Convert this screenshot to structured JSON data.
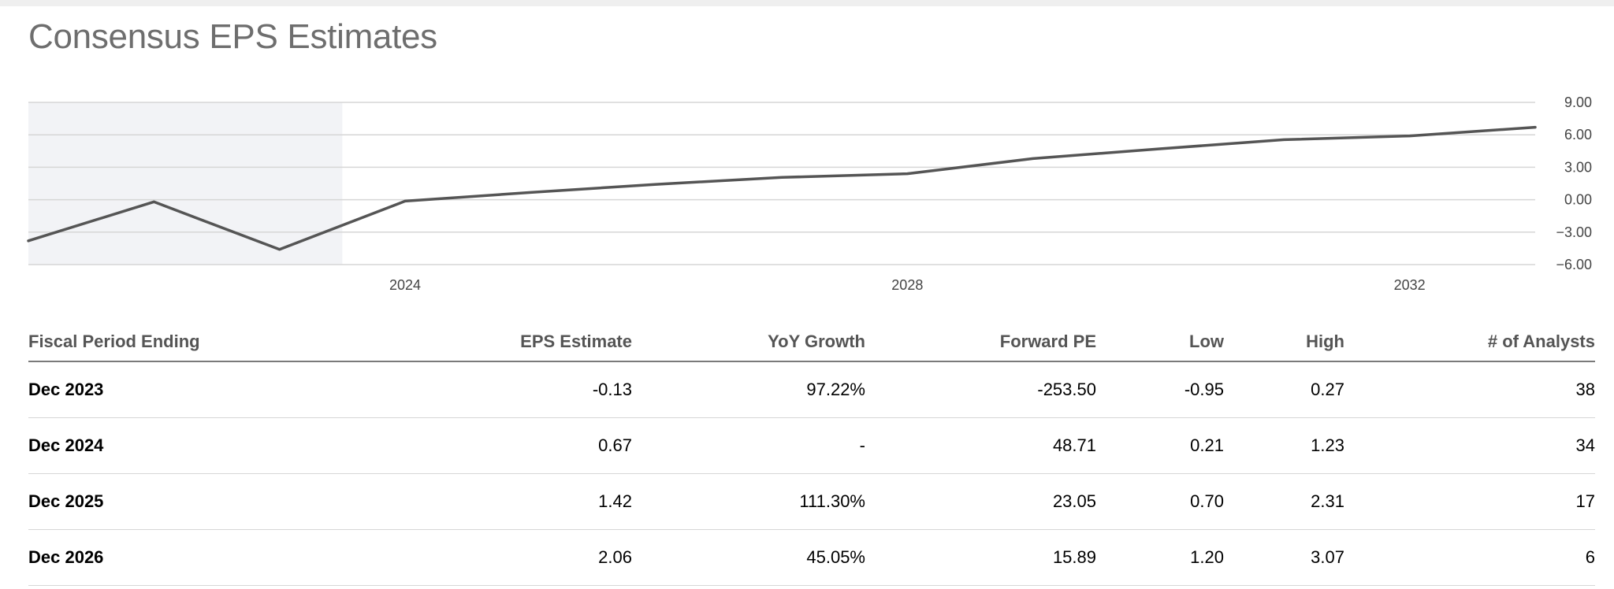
{
  "title": "Consensus EPS Estimates",
  "chart_data": {
    "type": "line",
    "shaded_region": [
      "",
      "2023-07"
    ],
    "series": [
      {
        "x": [
          "2021-01",
          "2022-01",
          "2023-01",
          "2024-01",
          "2025-01",
          "2026-01",
          "2027-01",
          "2028-01",
          "2029-01",
          "2030-01",
          "2031-01",
          "2032-01",
          "2033-01"
        ],
        "values": [
          -3.8,
          -0.2,
          -4.6,
          -0.13,
          0.67,
          1.42,
          2.06,
          2.4,
          3.8,
          4.7,
          5.55,
          5.9,
          6.7
        ]
      }
    ],
    "x_ticks": [
      "2024",
      "2028",
      "2032"
    ],
    "y_ticks": [
      "9.00",
      "6.00",
      "3.00",
      "0.00",
      "−3.00",
      "−6.00"
    ],
    "ylim": [
      -6,
      9
    ],
    "grid": true,
    "colors": {
      "line": "#555555",
      "grid": "#d6d6d6",
      "shade": "#f2f3f6"
    }
  },
  "table": {
    "headers": [
      "Fiscal Period Ending",
      "EPS Estimate",
      "YoY Growth",
      "Forward PE",
      "Low",
      "High",
      "# of Analysts"
    ],
    "rows": [
      [
        "Dec 2023",
        "-0.13",
        "97.22%",
        "-253.50",
        "-0.95",
        "0.27",
        "38"
      ],
      [
        "Dec 2024",
        "0.67",
        "-",
        "48.71",
        "0.21",
        "1.23",
        "34"
      ],
      [
        "Dec 2025",
        "1.42",
        "111.30%",
        "23.05",
        "0.70",
        "2.31",
        "17"
      ],
      [
        "Dec 2026",
        "2.06",
        "45.05%",
        "15.89",
        "1.20",
        "3.07",
        "6"
      ]
    ]
  }
}
